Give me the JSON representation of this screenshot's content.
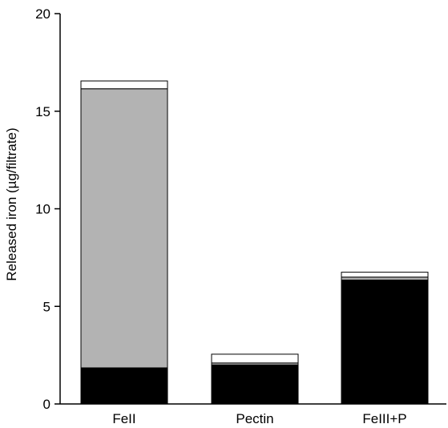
{
  "chart_data": {
    "type": "bar",
    "stacked": true,
    "title": "",
    "xlabel": "",
    "ylabel": "Released iron (µg/filtrate)",
    "ylim": [
      0,
      20
    ],
    "yticks": [
      "0",
      "5",
      "10",
      "15",
      "20"
    ],
    "categories": [
      "FeII",
      "Pectin",
      "FeIII+P"
    ],
    "series": [
      {
        "color": "#000000",
        "values": [
          1.85,
          2.0,
          6.35
        ]
      },
      {
        "color": "#b3b3b3",
        "values": [
          14.3,
          0.1,
          0.15
        ]
      },
      {
        "color": "#ffffff",
        "values": [
          0.4,
          0.45,
          0.25
        ]
      }
    ],
    "grid": false,
    "legend": "none"
  }
}
